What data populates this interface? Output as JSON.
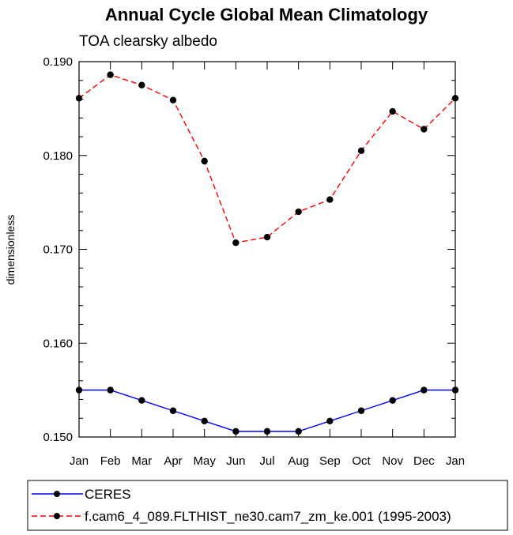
{
  "chart_data": {
    "type": "line",
    "title": "Annual Cycle Global Mean Climatology",
    "subtitle": "TOA clearsky albedo",
    "xlabel": "",
    "ylabel": "dimensionless",
    "categories": [
      "Jan",
      "Feb",
      "Mar",
      "Apr",
      "May",
      "Jun",
      "Jul",
      "Aug",
      "Sep",
      "Oct",
      "Nov",
      "Dec",
      "Jan"
    ],
    "ylim": [
      0.15,
      0.19
    ],
    "yticks": [
      "0.150",
      "0.160",
      "0.170",
      "0.180",
      "0.190"
    ],
    "series": [
      {
        "name": "CERES",
        "color": "#0000ff",
        "dash": "solid",
        "values": [
          0.155,
          0.155,
          0.1539,
          0.1528,
          0.1517,
          0.1506,
          0.1506,
          0.1506,
          0.1517,
          0.1528,
          0.1539,
          0.155,
          0.155
        ]
      },
      {
        "name": "f.cam6_4_089.FLTHIST_ne30.cam7_zm_ke.001 (1995-2003)",
        "color": "#ff0000",
        "dash": "dashed",
        "values": [
          0.1861,
          0.1886,
          0.1875,
          0.1859,
          0.1794,
          0.1707,
          0.1713,
          0.174,
          0.1753,
          0.1805,
          0.1847,
          0.1828,
          0.1861
        ]
      }
    ],
    "legend_position": "bottom-left"
  }
}
